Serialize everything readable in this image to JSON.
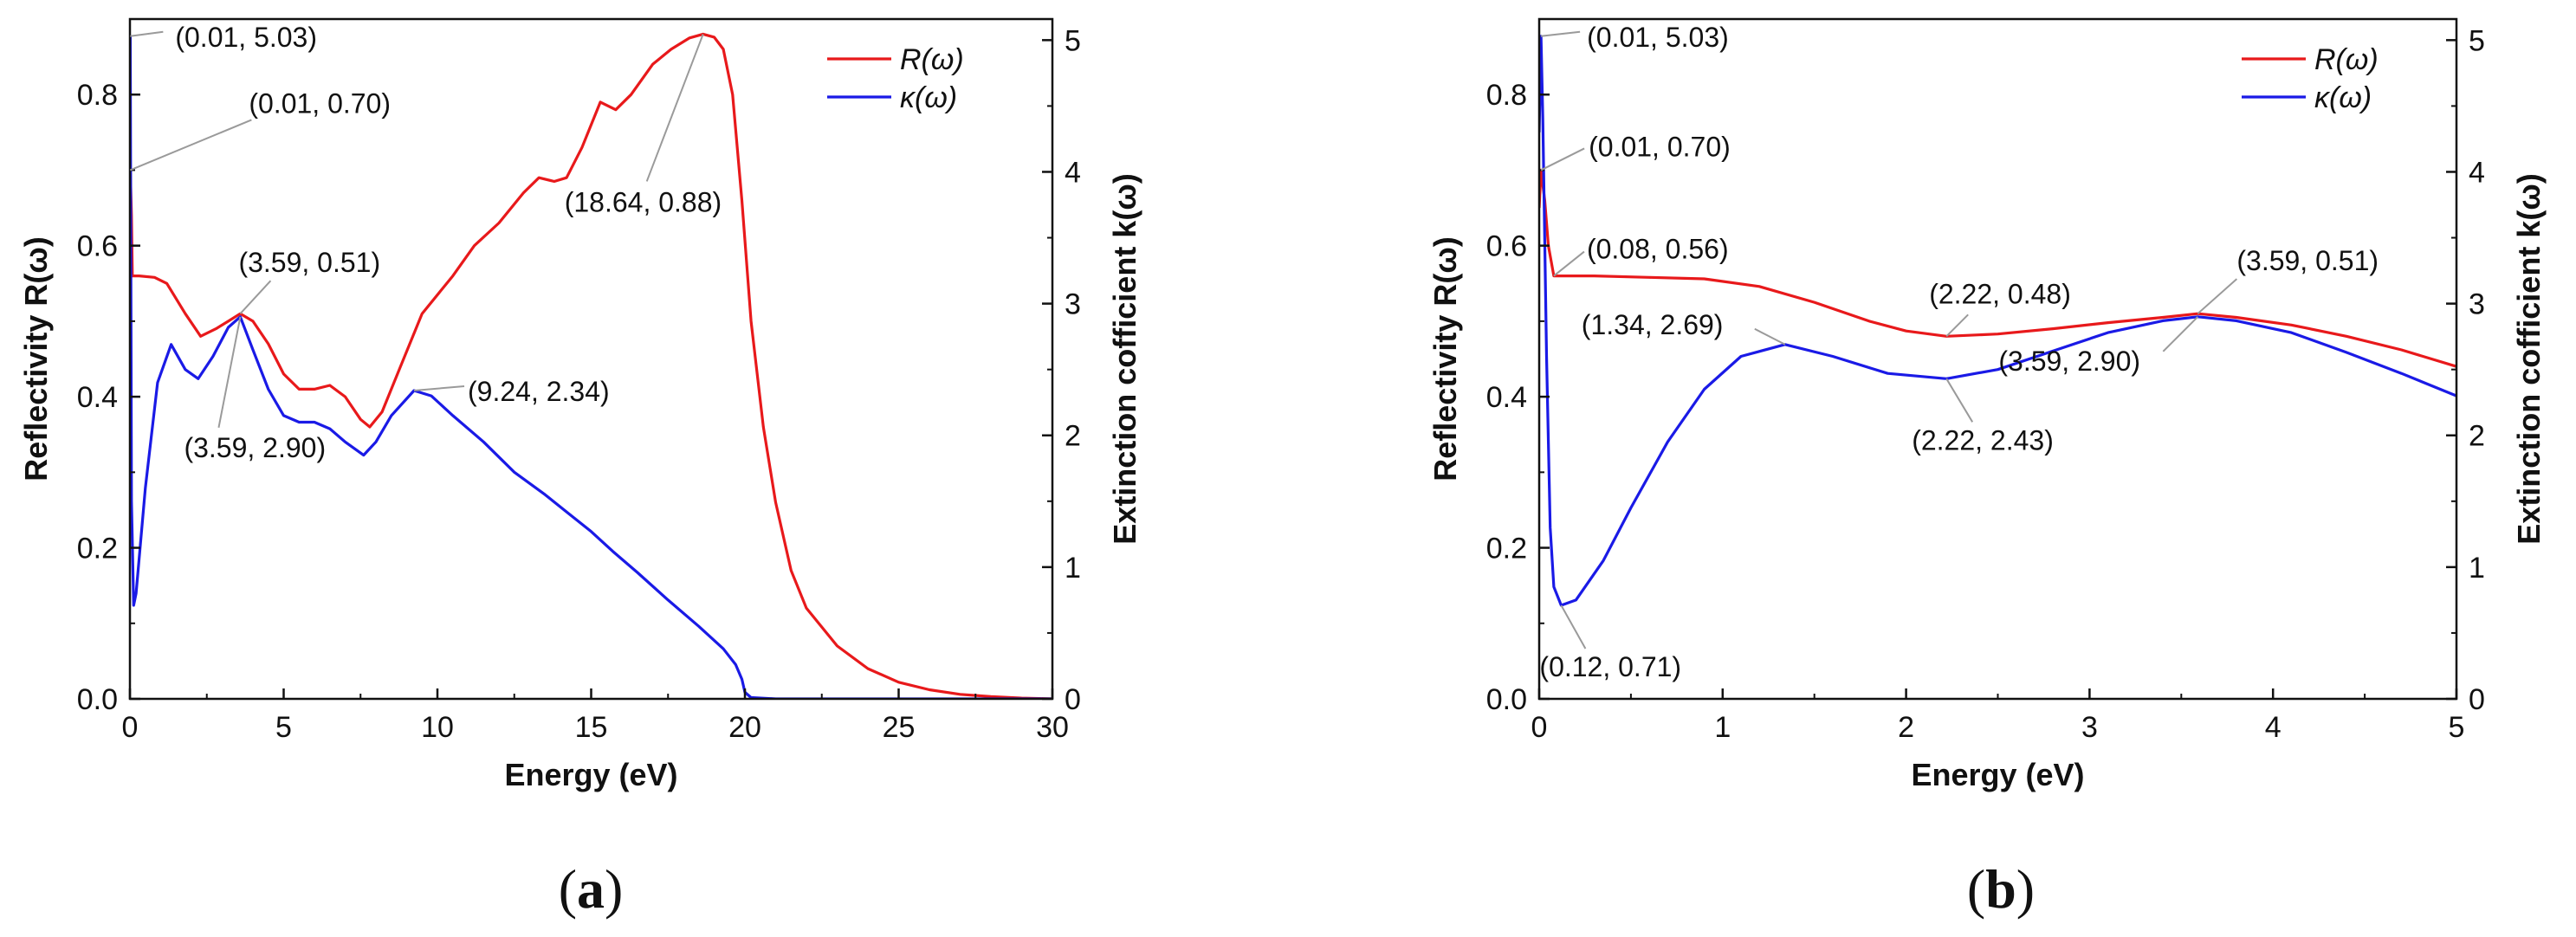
{
  "chart_data": [
    {
      "type": "line",
      "panel_label": "a",
      "xlabel": "Energy (eV)",
      "ylabel_left": "Reflectivity R(ω)",
      "ylabel_right": "Extinction cofficient k(ω)",
      "xlim": [
        0,
        30
      ],
      "ylim_left": [
        0,
        0.9
      ],
      "ylim_right": [
        0,
        5.16
      ],
      "xticks": [
        0,
        5,
        10,
        15,
        20,
        25,
        30
      ],
      "yticks_left": [
        0.0,
        0.2,
        0.4,
        0.6,
        0.8
      ],
      "yticks_right": [
        0,
        1,
        2,
        3,
        4,
        5
      ],
      "legend_position": "top-right",
      "series": [
        {
          "name": "R(ω)",
          "axis": "left",
          "color": "#e8191b",
          "x": [
            0,
            0.01,
            0.05,
            0.08,
            0.3,
            0.8,
            1.2,
            1.8,
            2.3,
            2.8,
            3.2,
            3.59,
            4.0,
            4.5,
            5.0,
            5.5,
            6.0,
            6.5,
            7.0,
            7.5,
            7.8,
            8.2,
            8.8,
            9.5,
            10.5,
            11.2,
            12.0,
            12.8,
            13.3,
            13.8,
            14.2,
            14.7,
            15.3,
            15.8,
            16.3,
            17.0,
            17.6,
            18.2,
            18.64,
            19.0,
            19.3,
            19.6,
            19.9,
            20.2,
            20.6,
            21.0,
            21.5,
            22.0,
            23.0,
            24.0,
            25.0,
            26.0,
            27.0,
            28.0,
            29.0,
            30.0
          ],
          "values": [
            0.63,
            0.7,
            0.64,
            0.56,
            0.56,
            0.558,
            0.55,
            0.51,
            0.48,
            0.49,
            0.5,
            0.51,
            0.5,
            0.47,
            0.43,
            0.41,
            0.41,
            0.415,
            0.4,
            0.37,
            0.36,
            0.38,
            0.44,
            0.51,
            0.56,
            0.6,
            0.63,
            0.67,
            0.69,
            0.685,
            0.69,
            0.73,
            0.79,
            0.78,
            0.8,
            0.84,
            0.86,
            0.875,
            0.88,
            0.876,
            0.86,
            0.8,
            0.66,
            0.5,
            0.36,
            0.26,
            0.17,
            0.12,
            0.07,
            0.04,
            0.022,
            0.012,
            0.006,
            0.003,
            0.001,
            0.0
          ]
        },
        {
          "name": "κ(ω)",
          "axis": "right",
          "color": "#1a1ae6",
          "x": [
            0,
            0.01,
            0.05,
            0.12,
            0.2,
            0.5,
            0.9,
            1.34,
            1.8,
            2.22,
            2.7,
            3.2,
            3.59,
            4.0,
            4.5,
            5.0,
            5.5,
            6.0,
            6.5,
            7.0,
            7.6,
            8.0,
            8.5,
            9.24,
            9.8,
            10.5,
            11.5,
            12.5,
            13.5,
            14.3,
            15.0,
            15.7,
            16.5,
            17.5,
            18.5,
            19.3,
            19.7,
            19.9,
            20.0,
            20.2,
            21.0,
            25.0,
            30.0
          ],
          "values": [
            4.3,
            5.03,
            1.5,
            0.71,
            0.8,
            1.6,
            2.4,
            2.69,
            2.5,
            2.43,
            2.6,
            2.82,
            2.9,
            2.65,
            2.35,
            2.15,
            2.1,
            2.1,
            2.05,
            1.95,
            1.85,
            1.95,
            2.15,
            2.34,
            2.3,
            2.15,
            1.95,
            1.72,
            1.55,
            1.4,
            1.27,
            1.12,
            0.96,
            0.75,
            0.55,
            0.38,
            0.26,
            0.15,
            0.05,
            0.01,
            0.0,
            0.0,
            0.0
          ]
        }
      ],
      "annotations": [
        {
          "text": "(0.01, 5.03)",
          "x": 0.01,
          "y": 5.03,
          "axis": "right"
        },
        {
          "text": "(0.01, 0.70)",
          "x": 0.01,
          "y": 0.7,
          "axis": "left"
        },
        {
          "text": "(3.59, 0.51)",
          "x": 3.59,
          "y": 0.51,
          "axis": "left"
        },
        {
          "text": "(3.59, 2.90)",
          "x": 3.59,
          "y": 2.9,
          "axis": "right"
        },
        {
          "text": "(9.24, 2.34)",
          "x": 9.24,
          "y": 2.34,
          "axis": "right"
        },
        {
          "text": "(18.64, 0.88)",
          "x": 18.64,
          "y": 0.88,
          "axis": "left"
        }
      ]
    },
    {
      "type": "line",
      "panel_label": "b",
      "xlabel": "Energy (eV)",
      "ylabel_left": "Reflectivity R(ω)",
      "ylabel_right": "Extinction cofficient k(ω)",
      "xlim": [
        0,
        5
      ],
      "ylim_left": [
        0,
        0.9
      ],
      "ylim_right": [
        0,
        5.16
      ],
      "xticks": [
        0,
        1,
        2,
        3,
        4,
        5
      ],
      "yticks_left": [
        0.0,
        0.2,
        0.4,
        0.6,
        0.8
      ],
      "yticks_right": [
        0,
        1,
        2,
        3,
        4,
        5
      ],
      "legend_position": "top-right",
      "series": [
        {
          "name": "R(ω)",
          "axis": "left",
          "color": "#e8191b",
          "x": [
            0,
            0.01,
            0.03,
            0.05,
            0.08,
            0.3,
            0.6,
            0.9,
            1.2,
            1.5,
            1.8,
            2.0,
            2.22,
            2.5,
            2.8,
            3.1,
            3.4,
            3.59,
            3.8,
            4.1,
            4.4,
            4.7,
            5.0
          ],
          "values": [
            0.65,
            0.7,
            0.66,
            0.6,
            0.56,
            0.56,
            0.558,
            0.556,
            0.546,
            0.525,
            0.5,
            0.487,
            0.48,
            0.483,
            0.49,
            0.498,
            0.505,
            0.51,
            0.505,
            0.495,
            0.48,
            0.462,
            0.44
          ]
        },
        {
          "name": "κ(ω)",
          "axis": "right",
          "color": "#1a1ae6",
          "x": [
            0,
            0.01,
            0.02,
            0.04,
            0.06,
            0.08,
            0.12,
            0.2,
            0.35,
            0.5,
            0.7,
            0.9,
            1.1,
            1.34,
            1.6,
            1.9,
            2.22,
            2.5,
            2.8,
            3.1,
            3.4,
            3.59,
            3.8,
            4.1,
            4.4,
            4.7,
            5.0
          ],
          "values": [
            4.3,
            5.03,
            4.4,
            2.6,
            1.3,
            0.85,
            0.71,
            0.75,
            1.05,
            1.45,
            1.95,
            2.35,
            2.6,
            2.69,
            2.6,
            2.47,
            2.43,
            2.5,
            2.64,
            2.78,
            2.87,
            2.9,
            2.87,
            2.78,
            2.63,
            2.47,
            2.3
          ]
        }
      ],
      "annotations": [
        {
          "text": "(0.01, 5.03)",
          "x": 0.01,
          "y": 5.03,
          "axis": "right"
        },
        {
          "text": "(0.01, 0.70)",
          "x": 0.01,
          "y": 0.7,
          "axis": "left"
        },
        {
          "text": "(0.08, 0.56)",
          "x": 0.08,
          "y": 0.56,
          "axis": "left"
        },
        {
          "text": "(2.22, 0.48)",
          "x": 2.22,
          "y": 0.48,
          "axis": "left"
        },
        {
          "text": "(1.34, 2.69)",
          "x": 1.34,
          "y": 2.69,
          "axis": "right"
        },
        {
          "text": "(3.59, 0.51)",
          "x": 3.59,
          "y": 0.51,
          "axis": "left"
        },
        {
          "text": "(2.22, 2.43)",
          "x": 2.22,
          "y": 2.43,
          "axis": "right"
        },
        {
          "text": "(3.59, 2.90)",
          "x": 3.59,
          "y": 2.9,
          "axis": "right"
        },
        {
          "text": "(0.12, 0.71)",
          "x": 0.12,
          "y": 0.71,
          "axis": "right"
        }
      ]
    }
  ]
}
